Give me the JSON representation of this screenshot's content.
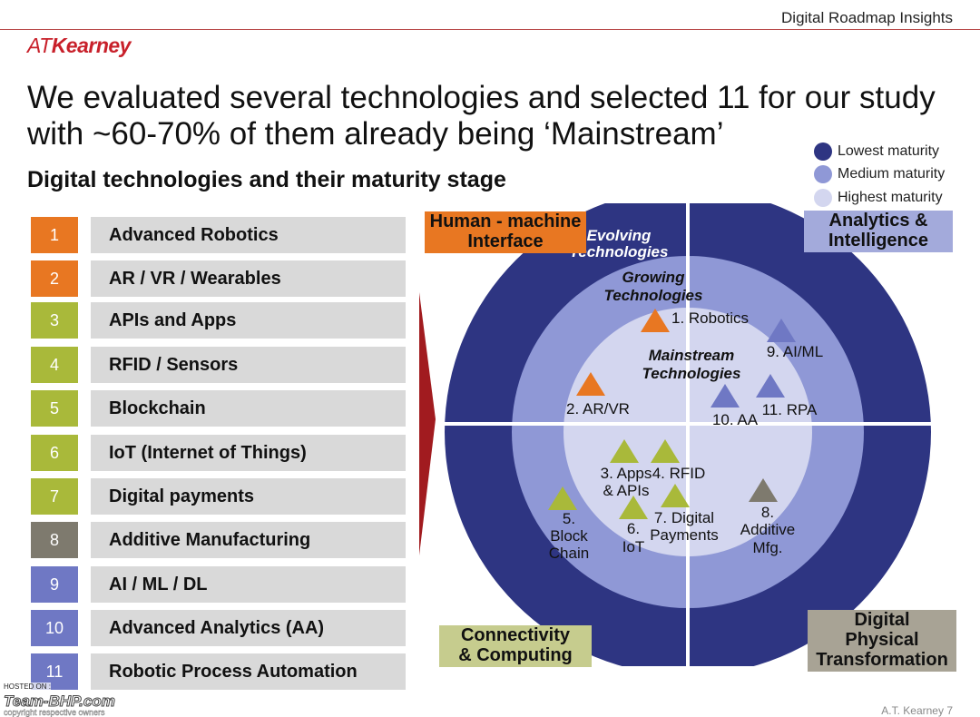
{
  "header": {
    "title": "Digital Roadmap Insights",
    "logo_prefix": "AT",
    "logo_name": "Kearney"
  },
  "title": "We evaluated several technologies and selected 11 for our study with ~60-70% of them already being ‘Mainstream’",
  "subtitle": "Digital technologies and their maturity stage",
  "legend": [
    {
      "label": "Lowest maturity",
      "color": "#2e3582"
    },
    {
      "label": "Medium maturity",
      "color": "#8f98d6"
    },
    {
      "label": "Highest maturity",
      "color": "#d3d6ef"
    }
  ],
  "technologies": [
    {
      "num": "1",
      "label": "Advanced Robotics",
      "color": "#e87722"
    },
    {
      "num": "2",
      "label": "AR / VR / Wearables",
      "color": "#e87722"
    },
    {
      "num": "3",
      "label": "APIs and Apps",
      "color": "#a9b93a"
    },
    {
      "num": "4",
      "label": "RFID / Sensors",
      "color": "#a9b93a"
    },
    {
      "num": "5",
      "label": "Blockchain",
      "color": "#a9b93a"
    },
    {
      "num": "6",
      "label": "IoT (Internet of Things)",
      "color": "#a9b93a"
    },
    {
      "num": "7",
      "label": "Digital payments",
      "color": "#a9b93a"
    },
    {
      "num": "8",
      "label": "Additive Manufacturing",
      "color": "#7e7a6e"
    },
    {
      "num": "9",
      "label": "AI / ML / DL",
      "color": "#6f78c4"
    },
    {
      "num": "10",
      "label": "Advanced Analytics (AA)",
      "color": "#6f78c4"
    },
    {
      "num": "11",
      "label": "Robotic Process Automation",
      "color": "#6f78c4"
    }
  ],
  "quadrants": {
    "top_left": {
      "line1": "Human - machine",
      "line2": "Interface",
      "bg": "#e87722"
    },
    "top_right": {
      "line1": "Analytics &",
      "line2": "Intelligence",
      "bg": "#a3aadb"
    },
    "bottom_left": {
      "line1": "Connectivity",
      "line2": "& Computing",
      "bg": "#c6cc8e"
    },
    "bottom_right": {
      "line1": "Digital",
      "line2": "Physical",
      "line3": "Transformation",
      "bg": "#a8a395"
    }
  },
  "rings": {
    "outer": {
      "line1": "Evolving",
      "line2": "Technologies"
    },
    "middle": {
      "line1": "Growing",
      "line2": "Technologies"
    },
    "inner": {
      "line1": "Mainstream",
      "line2": "Technologies"
    }
  },
  "markers": {
    "robotics": {
      "label": "1. Robotics"
    },
    "arvr": {
      "label": "2. AR/VR"
    },
    "apps": {
      "line1": "3. Apps",
      "line2": "& APIs"
    },
    "rfid": {
      "label": "4. RFID"
    },
    "block": {
      "line1": "5.",
      "line2": "Block",
      "line3": "Chain"
    },
    "iot": {
      "line1": "6.",
      "line2": "IoT"
    },
    "payments": {
      "line1": "7. Digital",
      "line2": "Payments"
    },
    "additive": {
      "line1": "8.",
      "line2": "Additive",
      "line3": "Mfg."
    },
    "aiml": {
      "label": "9. AI/ML"
    },
    "aa": {
      "label": "10. AA"
    },
    "rpa": {
      "label": "11. RPA"
    }
  },
  "footer": {
    "hosted": "HOSTED ON :",
    "brand": "Team-BHP.com",
    "copyright": "copyright respective owners",
    "page": "A.T. Kearney    7"
  }
}
